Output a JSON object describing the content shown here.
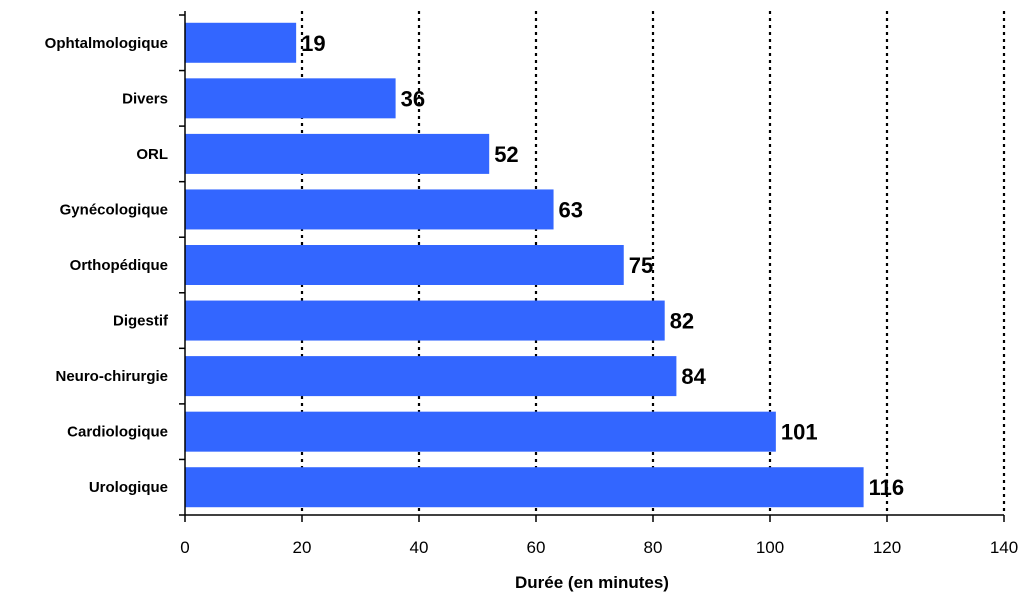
{
  "chart_data": {
    "type": "bar",
    "orientation": "horizontal",
    "categories": [
      "Ophtalmologique",
      "Divers",
      "ORL",
      "Gynécologique",
      "Orthopédique",
      "Digestif",
      "Neuro-chirurgie",
      "Cardiologique",
      "Urologique"
    ],
    "values": [
      19,
      36,
      52,
      63,
      75,
      82,
      84,
      101,
      116
    ],
    "data_labels": [
      "19",
      "36",
      "52",
      "63",
      "75",
      "82",
      "84",
      "101",
      "116"
    ],
    "title": "",
    "xlabel": "Durée (en minutes)",
    "ylabel": "",
    "xlim": [
      0,
      140
    ],
    "x_ticks": [
      "0",
      "20",
      "40",
      "60",
      "80",
      "100",
      "120",
      "140"
    ],
    "grid": "vertical dotted lines at major ticks",
    "legend": "none",
    "bar_color": "#3366FF",
    "grid_color": "#000000"
  }
}
